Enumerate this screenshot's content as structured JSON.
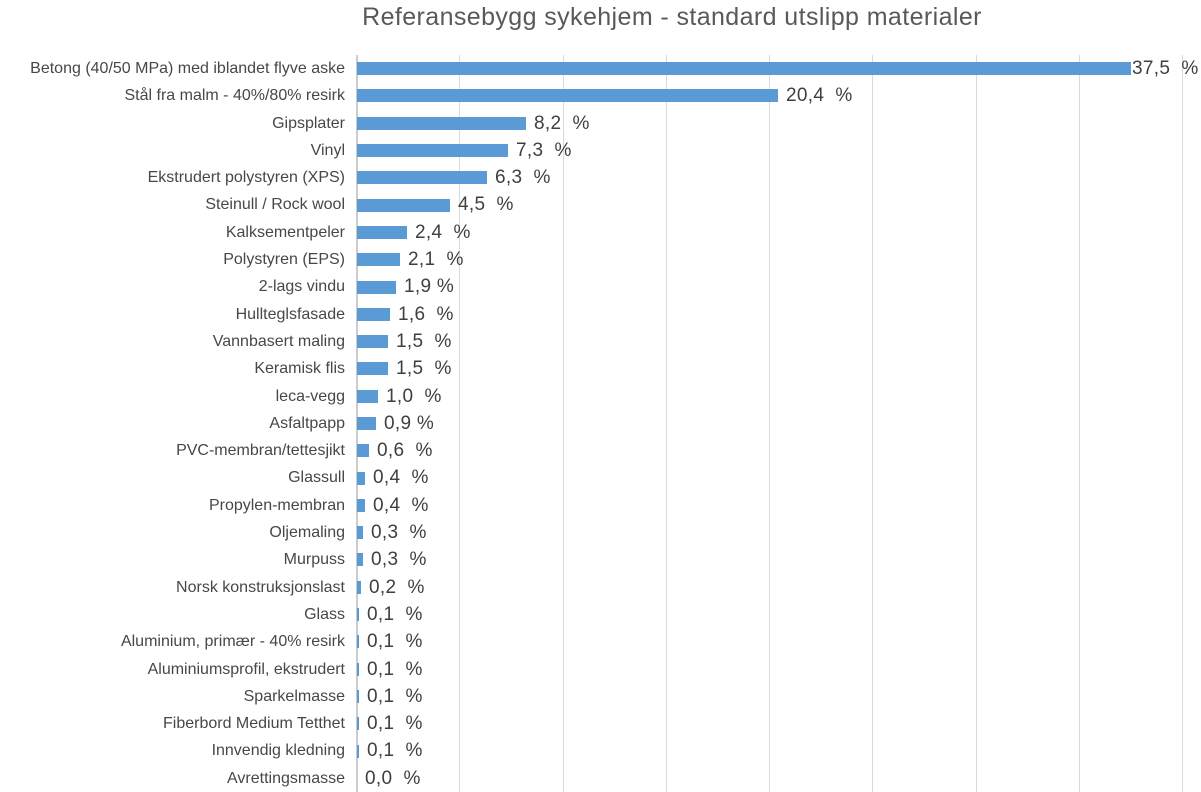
{
  "chart_data": {
    "type": "bar",
    "orientation": "horizontal",
    "title": "Referansebygg sykehjem - standard utslipp materialer",
    "xlabel": "",
    "ylabel": "",
    "xlim": [
      0,
      40
    ],
    "gridline_step": 5,
    "grid": true,
    "legend": false,
    "bar_color": "#5b9bd5",
    "gridline_color": "#d9d9d9",
    "axis_color": "#cccccc",
    "title_color": "#595959",
    "label_color": "#474747",
    "value_color": "#3f3f3f",
    "categories": [
      "Betong (40/50 MPa) med iblandet flyve aske",
      "Stål fra malm - 40%/80% resirk",
      "Gipsplater",
      "Vinyl",
      "Ekstrudert polystyren (XPS)",
      "Steinull / Rock wool",
      "Kalksementpeler",
      "Polystyren (EPS)",
      "2-lags vindu",
      "Hullteglsfasade",
      "Vannbasert maling",
      "Keramisk flis",
      "leca-vegg",
      "Asfaltpapp",
      "PVC-membran/tettesjikt",
      "Glassull",
      "Propylen-membran",
      "Oljemaling",
      "Murpuss",
      "Norsk konstruksjonslast",
      "Glass",
      "Aluminium, primær - 40% resirk",
      "Aluminiumsprofil, ekstrudert",
      "Sparkelmasse",
      "Fiberbord Medium Tetthet",
      "Innvendig kledning",
      "Avrettingsmasse"
    ],
    "values": [
      37.5,
      20.4,
      8.2,
      7.3,
      6.3,
      4.5,
      2.4,
      2.1,
      1.9,
      1.6,
      1.5,
      1.5,
      1.0,
      0.9,
      0.6,
      0.4,
      0.4,
      0.3,
      0.3,
      0.2,
      0.1,
      0.1,
      0.1,
      0.1,
      0.1,
      0.1,
      0.0
    ],
    "value_labels": [
      "37,5  %",
      "20,4  %",
      "8,2  %",
      "7,3  %",
      "6,3  %",
      "4,5  %",
      "2,4  %",
      "2,1  %",
      "1,9 %",
      "1,6  %",
      "1,5  %",
      "1,5  %",
      "1,0  %",
      "0,9 %",
      "0,6  %",
      "0,4  %",
      "0,4  %",
      "0,3  %",
      "0,3  %",
      "0,2  %",
      "0,1  %",
      "0,1  %",
      "0,1  %",
      "0,1  %",
      "0,1  %",
      "0,1  %",
      "0,0  %"
    ]
  }
}
